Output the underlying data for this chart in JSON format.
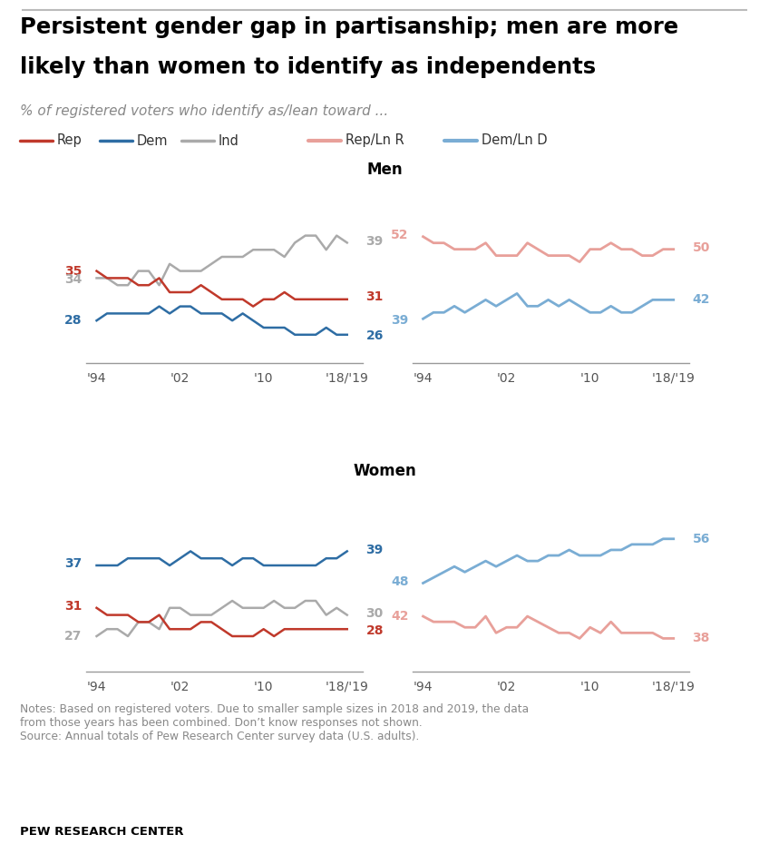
{
  "title_line1": "Persistent gender gap in partisanship; men are more",
  "title_line2": "likely than women to identify as independents",
  "subtitle": "% of registered voters who identify as/lean toward ...",
  "years": [
    1994,
    1995,
    1996,
    1997,
    1998,
    1999,
    2000,
    2001,
    2002,
    2003,
    2004,
    2005,
    2006,
    2007,
    2008,
    2009,
    2010,
    2011,
    2012,
    2013,
    2014,
    2015,
    2016,
    2017,
    2018
  ],
  "men_rep": [
    35,
    34,
    34,
    34,
    33,
    33,
    34,
    32,
    32,
    32,
    33,
    32,
    31,
    31,
    31,
    30,
    31,
    31,
    32,
    31,
    31,
    31,
    31,
    31,
    31
  ],
  "men_dem": [
    28,
    29,
    29,
    29,
    29,
    29,
    30,
    29,
    30,
    30,
    29,
    29,
    29,
    28,
    29,
    28,
    27,
    27,
    27,
    26,
    26,
    26,
    27,
    26,
    26
  ],
  "men_ind": [
    34,
    34,
    33,
    33,
    35,
    35,
    33,
    36,
    35,
    35,
    35,
    36,
    37,
    37,
    37,
    38,
    38,
    38,
    37,
    39,
    40,
    40,
    38,
    40,
    39
  ],
  "men_rep_lean": [
    52,
    51,
    51,
    50,
    50,
    50,
    51,
    49,
    49,
    49,
    51,
    50,
    49,
    49,
    49,
    48,
    50,
    50,
    51,
    50,
    50,
    49,
    49,
    50,
    50
  ],
  "men_dem_lean": [
    39,
    40,
    40,
    41,
    40,
    41,
    42,
    41,
    42,
    43,
    41,
    41,
    42,
    41,
    42,
    41,
    40,
    40,
    41,
    40,
    40,
    41,
    42,
    42,
    42
  ],
  "women_rep": [
    31,
    30,
    30,
    30,
    29,
    29,
    30,
    28,
    28,
    28,
    29,
    29,
    28,
    27,
    27,
    27,
    28,
    27,
    28,
    28,
    28,
    28,
    28,
    28,
    28
  ],
  "women_dem": [
    37,
    37,
    37,
    38,
    38,
    38,
    38,
    37,
    38,
    39,
    38,
    38,
    38,
    37,
    38,
    38,
    37,
    37,
    37,
    37,
    37,
    37,
    38,
    38,
    39
  ],
  "women_ind": [
    27,
    28,
    28,
    27,
    29,
    29,
    28,
    31,
    31,
    30,
    30,
    30,
    31,
    32,
    31,
    31,
    31,
    32,
    31,
    31,
    32,
    32,
    30,
    31,
    30
  ],
  "women_rep_lean": [
    42,
    41,
    41,
    41,
    40,
    40,
    42,
    39,
    40,
    40,
    42,
    41,
    40,
    39,
    39,
    38,
    40,
    39,
    41,
    39,
    39,
    39,
    39,
    38,
    38
  ],
  "women_dem_lean": [
    48,
    49,
    50,
    51,
    50,
    51,
    52,
    51,
    52,
    53,
    52,
    52,
    53,
    53,
    54,
    53,
    53,
    53,
    54,
    54,
    55,
    55,
    55,
    56,
    56
  ],
  "color_rep": "#c0392b",
  "color_dem": "#2e6da4",
  "color_ind": "#aaaaaa",
  "color_rep_lean": "#e8a09a",
  "color_dem_lean": "#7aadd4",
  "notes": "Notes: Based on registered voters. Due to smaller sample sizes in 2018 and 2019, the data\nfrom those years has been combined. Don’t know responses not shown.\nSource: Annual totals of Pew Research Center survey data (U.S. adults).",
  "source_label": "PEW RESEARCH CENTER",
  "x_ticks": [
    1994,
    2002,
    2010,
    2018
  ],
  "x_tick_labels": [
    "'94",
    "'02",
    "'10",
    "'18/'19"
  ]
}
